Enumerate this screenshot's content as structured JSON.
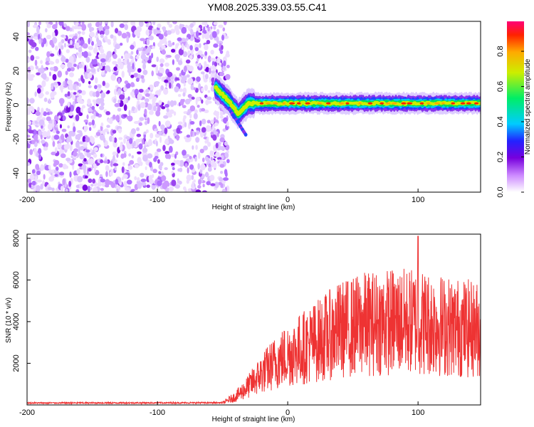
{
  "title": "YM08.2025.339.03.55.C41",
  "colors": {
    "snr_line": "#ee3333",
    "axis": "#000000",
    "background": "#ffffff"
  },
  "chart_data": [
    {
      "type": "heatmap",
      "title": "",
      "xlabel": "Height of straight line (km)",
      "ylabel": "Frequency (Hz)",
      "xlim": [
        -200,
        148
      ],
      "ylim": [
        -51,
        49
      ],
      "xticks": [
        -200,
        -100,
        0,
        100
      ],
      "xtick_labels": [
        "-200",
        "-100",
        "0",
        "100"
      ],
      "yticks": [
        40,
        20,
        0,
        -20,
        -40
      ],
      "ytick_labels": [
        "40",
        "20",
        "0",
        "-20",
        "-40"
      ],
      "noise_region_x": [
        -200,
        -50
      ],
      "ridge": {
        "description_points_x": [
          -55,
          -45,
          -38,
          -30,
          -20,
          0,
          50,
          100,
          148
        ],
        "description_points_y": [
          10,
          2,
          -5,
          1,
          1,
          1,
          1,
          1,
          1
        ]
      },
      "colorbar": {
        "label": "Normalized spectral amplitude",
        "min": 0.0,
        "max": 0.97,
        "ticks": [
          0.0,
          0.2,
          0.4,
          0.6,
          0.8
        ],
        "tick_labels": [
          "0.0",
          "0.2",
          "0.4",
          "0.6",
          "0.8"
        ]
      }
    },
    {
      "type": "line",
      "title": "",
      "xlabel": "Height of straight line (km)",
      "ylabel": "SNR (10 * v/v)",
      "xlim": [
        -200,
        148
      ],
      "ylim": [
        0,
        8200
      ],
      "xticks": [
        -200,
        -100,
        0,
        100
      ],
      "xtick_labels": [
        "-200",
        "-100",
        "0",
        "100"
      ],
      "yticks": [
        2000,
        4000,
        6000,
        8000
      ],
      "ytick_labels": [
        "2000",
        "4000",
        "6000",
        "8000"
      ],
      "series": [
        {
          "name": "SNR",
          "envelope_x": [
            -200,
            -50,
            -40,
            -30,
            -20,
            -10,
            0,
            20,
            40,
            60,
            80,
            100,
            120,
            148
          ],
          "envelope_y": [
            80,
            90,
            400,
            900,
            1500,
            2000,
            2400,
            3000,
            3600,
            3900,
            4000,
            4000,
            3800,
            3600
          ],
          "peak_x": 100,
          "peak_y": 8100
        }
      ]
    }
  ]
}
